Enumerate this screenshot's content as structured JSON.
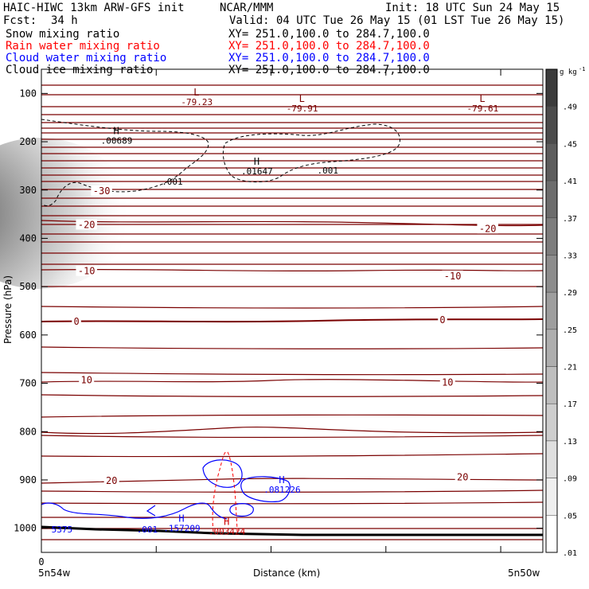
{
  "header": {
    "title_left": "HAIC-HIWC 13km ARW-GFS init",
    "org": "NCAR/MMM",
    "init": "Init: 18 UTC Sun 24 May 15",
    "fcst_label": "Fcst:",
    "fcst_value": "34 h",
    "valid": "Valid: 04 UTC Tue 26 May 15 (01 LST Tue 26 May 15)",
    "fields": [
      {
        "name": "Snow mixing ratio",
        "xy": "XY= 251.0,100.0 to 284.7,100.0",
        "color": "#000000"
      },
      {
        "name": "Rain water mixing ratio",
        "xy": "XY= 251.0,100.0 to 284.7,100.0",
        "color": "#ff0000"
      },
      {
        "name": "Cloud water mixing ratio",
        "xy": "XY= 251.0,100.0 to 284.7,100.0",
        "color": "#0000ff"
      },
      {
        "name": "Cloud ice mixing ratio",
        "xy": "XY= 251.0,100.0 to 284.7,100.0",
        "color": "#000000"
      }
    ]
  },
  "chart_data": {
    "type": "contour",
    "ylabel": "Pressure (hPa)",
    "xlabel": "Distance (km)",
    "ylim": [
      1050,
      50
    ],
    "y_ticks": [
      100,
      200,
      300,
      400,
      500,
      600,
      700,
      800,
      900,
      1000
    ],
    "x_ticks": [
      "0"
    ],
    "x_end_labels": [
      "5n54w",
      "5n50w"
    ],
    "colorbar": {
      "unit": "g kg",
      "unit_exp": "-1",
      "ticks": [
        ".49",
        ".45",
        ".41",
        ".37",
        ".33",
        ".29",
        ".25",
        ".21",
        ".17",
        ".13",
        ".09",
        ".05",
        ".01"
      ]
    },
    "temperature_labels": [
      {
        "text": "-30",
        "x": 0.12,
        "p": 302
      },
      {
        "text": "-20",
        "x": 0.09,
        "p": 372
      },
      {
        "text": "-20",
        "x": 0.89,
        "p": 380
      },
      {
        "text": "-10",
        "x": 0.09,
        "p": 468
      },
      {
        "text": "-10",
        "x": 0.82,
        "p": 478
      },
      {
        "text": "0",
        "x": 0.07,
        "p": 572
      },
      {
        "text": "0",
        "x": 0.8,
        "p": 569
      },
      {
        "text": "10",
        "x": 0.09,
        "p": 693
      },
      {
        "text": "10",
        "x": 0.81,
        "p": 698
      },
      {
        "text": "20",
        "x": 0.14,
        "p": 902
      },
      {
        "text": "20",
        "x": 0.84,
        "p": 894
      }
    ],
    "extrema": [
      {
        "symbol": "L",
        "value": "-79.23",
        "x": 0.31,
        "p": 111
      },
      {
        "symbol": "L",
        "value": "-79.91",
        "x": 0.52,
        "p": 124
      },
      {
        "symbol": "L",
        "value": "-79.61",
        "x": 0.88,
        "p": 124
      },
      {
        "symbol": "H",
        "value": ".00689",
        "x": 0.15,
        "p": 191
      },
      {
        "symbol": "H",
        "value": ".01647",
        "x": 0.43,
        "p": 254
      },
      {
        "symbol": "H",
        "value": ".081226",
        "x": 0.48,
        "p": 913
      },
      {
        "symbol": "H",
        "value": ".157209",
        "x": 0.28,
        "p": 993
      },
      {
        "symbol": "H",
        "value": ".003424",
        "x": 0.37,
        "p": 1000
      }
    ],
    "contour_labels": [
      {
        "text": ".001",
        "x": 0.24,
        "p": 282,
        "color": "#000000"
      },
      {
        "text": ".001",
        "x": 0.55,
        "p": 259,
        "color": "#000000"
      },
      {
        "text": ".001",
        "x": 0.19,
        "p": 1002,
        "color": "#0000ff"
      },
      {
        "text": "5375",
        "x": 0.02,
        "p": 1002,
        "color": "#0000ff"
      }
    ]
  }
}
